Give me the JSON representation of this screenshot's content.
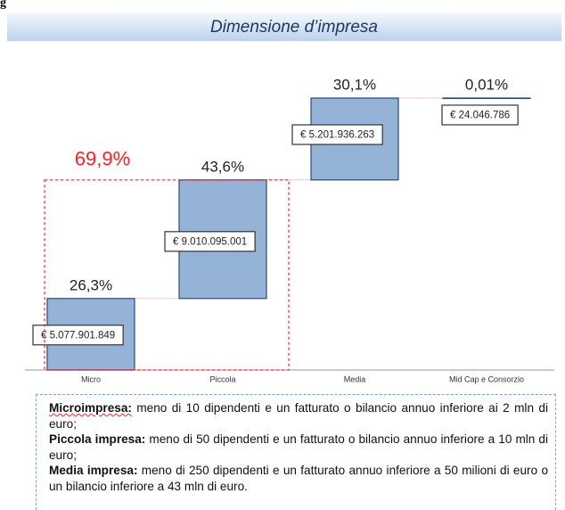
{
  "fragment": "g",
  "chart_data": {
    "type": "waterfall",
    "title": "Dimensione d’impresa",
    "categories": [
      "Micro",
      "Piccola",
      "Media",
      "Mid Cap e Consorzio"
    ],
    "values": [
      26.3,
      43.6,
      30.1,
      0.01
    ],
    "value_labels": [
      "26,3%",
      "43,6%",
      "30,1%",
      "0,01%"
    ],
    "amounts": [
      5077901849,
      9010095001,
      5201936263,
      24046786
    ],
    "amount_labels": [
      "€ 5.077.901.849",
      "€ 9.010.095.001",
      "€ 5.201.936.263",
      "€ 24.046.786"
    ],
    "annotation": {
      "value": 69.9,
      "label": "69,9%",
      "color": "#ff2020"
    },
    "color": "#95b3d7",
    "edge_color": "#2a4a7a",
    "ylim": [
      0,
      100
    ]
  },
  "definitions": [
    {
      "term": "Microimpresa:",
      "text": " meno di 10 dipendenti e un fatturato o bilancio annuo inferiore ai 2 mln di euro;"
    },
    {
      "term": "Piccola impresa:",
      "text": " meno di 50 dipendenti e un fatturato o bilancio annuo inferiore a 10 mln di euro;"
    },
    {
      "term": "Media impresa:",
      "text": " meno di 250 dipendenti e un fatturato annuo inferiore a 50 milioni di euro o un bilancio inferiore a 43 mln di euro."
    }
  ]
}
